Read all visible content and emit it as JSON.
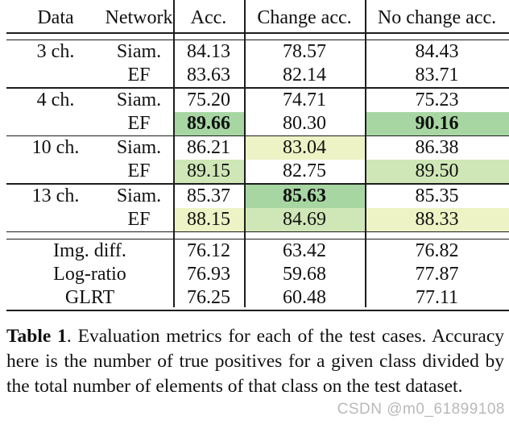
{
  "colors": {
    "strong_green": "#a7d6a3",
    "light_green": "#cfe7b6",
    "pale_yellow": "#eef3c5",
    "rule_black": "#1d1d1d",
    "watermark_gray": "#b9b9b9"
  },
  "table": {
    "header": [
      "Data",
      "Network",
      "Acc.",
      "Change acc.",
      "No change acc."
    ],
    "groups": [
      {
        "label": "3 ch.",
        "rows": [
          {
            "network": "Siam.",
            "acc": "84.13",
            "change": "78.57",
            "nochange": "84.43"
          },
          {
            "network": "EF",
            "acc": "83.63",
            "change": "82.14",
            "nochange": "83.71"
          }
        ]
      },
      {
        "label": "4 ch.",
        "rows": [
          {
            "network": "Siam.",
            "acc": "75.20",
            "change": "74.71",
            "nochange": "75.23"
          },
          {
            "network": "EF",
            "acc": "89.66",
            "change": "80.30",
            "nochange": "90.16"
          }
        ]
      },
      {
        "label": "10 ch.",
        "rows": [
          {
            "network": "Siam.",
            "acc": "86.21",
            "change": "83.04",
            "nochange": "86.38"
          },
          {
            "network": "EF",
            "acc": "89.15",
            "change": "82.75",
            "nochange": "89.50"
          }
        ]
      },
      {
        "label": "13 ch.",
        "rows": [
          {
            "network": "Siam.",
            "acc": "85.37",
            "change": "85.63",
            "nochange": "85.35"
          },
          {
            "network": "EF",
            "acc": "88.15",
            "change": "84.69",
            "nochange": "88.33"
          }
        ]
      }
    ],
    "baselines": [
      {
        "label": "Img. diff.",
        "acc": "76.12",
        "change": "63.42",
        "nochange": "76.82"
      },
      {
        "label": "Log-ratio",
        "acc": "76.93",
        "change": "59.68",
        "nochange": "77.87"
      },
      {
        "label": "GLRT",
        "acc": "76.25",
        "change": "60.48",
        "nochange": "77.11"
      }
    ]
  },
  "caption": {
    "label": "Table 1",
    "text": ".  Evaluation metrics for each of the test cases.  Accuracy here is the number of true positives for a given class divided by the total number of elements of that class on the test dataset."
  },
  "watermark": "CSDN @m0_61899108"
}
